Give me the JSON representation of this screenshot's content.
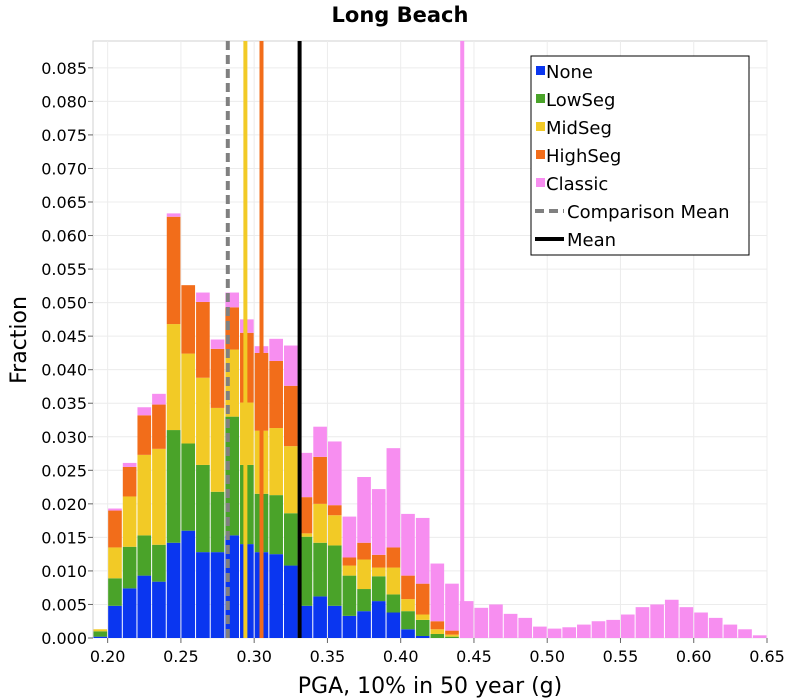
{
  "chart_data": {
    "type": "bar",
    "stacked": true,
    "title": "Long Beach",
    "xlabel": "PGA, 10% in 50 year (g)",
    "ylabel": "Fraction",
    "xlim": [
      0.19,
      0.65
    ],
    "ylim": [
      0,
      0.089
    ],
    "bin_width": 0.01,
    "x_ticks": [
      0.2,
      0.25,
      0.3,
      0.35,
      0.4,
      0.45,
      0.5,
      0.55,
      0.6,
      0.65
    ],
    "x_tick_labels": [
      "0.20",
      "0.25",
      "0.30",
      "0.35",
      "0.40",
      "0.45",
      "0.50",
      "0.55",
      "0.60",
      "0.65"
    ],
    "y_ticks": [
      0,
      0.005,
      0.01,
      0.015,
      0.02,
      0.025,
      0.03,
      0.035,
      0.04,
      0.045,
      0.05,
      0.055,
      0.06,
      0.065,
      0.07,
      0.075,
      0.08,
      0.085
    ],
    "y_tick_labels": [
      "0.000",
      "0.005",
      "0.010",
      "0.015",
      "0.020",
      "0.025",
      "0.030",
      "0.035",
      "0.040",
      "0.045",
      "0.050",
      "0.055",
      "0.060",
      "0.065",
      "0.070",
      "0.075",
      "0.080",
      "0.085"
    ],
    "legend_position": "top-right",
    "bins_left": [
      0.19,
      0.2,
      0.21,
      0.22,
      0.23,
      0.24,
      0.25,
      0.26,
      0.27,
      0.28,
      0.29,
      0.3,
      0.31,
      0.32,
      0.33,
      0.34,
      0.35,
      0.36,
      0.37,
      0.38,
      0.39,
      0.4,
      0.41,
      0.42,
      0.43,
      0.44,
      0.45,
      0.46,
      0.47,
      0.48,
      0.49,
      0.5,
      0.51,
      0.52,
      0.53,
      0.54,
      0.55,
      0.56,
      0.57,
      0.58,
      0.59,
      0.6,
      0.61,
      0.62,
      0.63,
      0.64
    ],
    "series": [
      {
        "name": "None",
        "color": "#0a36f0",
        "values": [
          0.0002,
          0.0048,
          0.0074,
          0.0093,
          0.0084,
          0.0142,
          0.016,
          0.0128,
          0.0128,
          0.0153,
          0.014,
          0.0128,
          0.0125,
          0.0108,
          0.0048,
          0.0062,
          0.0048,
          0.0033,
          0.004,
          0.0055,
          0.0038,
          0.0013,
          0.0003,
          0,
          0,
          0,
          0,
          0,
          0,
          0,
          0,
          0,
          0,
          0,
          0,
          0,
          0,
          0,
          0,
          0,
          0,
          0,
          0,
          0,
          0,
          0
        ]
      },
      {
        "name": "LowSeg",
        "color": "#4aa329",
        "values": [
          0.0008,
          0.0041,
          0.0062,
          0.006,
          0.0055,
          0.0168,
          0.013,
          0.013,
          0.009,
          0.0177,
          0.0118,
          0.0087,
          0.0088,
          0.0078,
          0.0103,
          0.008,
          0.009,
          0.006,
          0.0033,
          0.0037,
          0.0027,
          0.0027,
          0.0024,
          0.0006,
          0.0002,
          0,
          0,
          0,
          0,
          0,
          0,
          0,
          0,
          0,
          0,
          0,
          0,
          0,
          0,
          0,
          0,
          0,
          0,
          0,
          0,
          0
        ]
      },
      {
        "name": "MidSeg",
        "color": "#f2ca26",
        "values": [
          0.0003,
          0.0046,
          0.0075,
          0.012,
          0.0143,
          0.0158,
          0.0134,
          0.013,
          0.0125,
          0.01,
          0.0093,
          0.0094,
          0.01,
          0.01,
          0.0005,
          0.0058,
          0.0045,
          0.0015,
          0.0044,
          0.0013,
          0.004,
          0.0018,
          0.0008,
          0.0007,
          0.0003,
          0,
          0,
          0,
          0,
          0,
          0,
          0,
          0,
          0,
          0,
          0,
          0,
          0,
          0,
          0,
          0,
          0,
          0,
          0,
          0,
          0
        ]
      },
      {
        "name": "HighSeg",
        "color": "#f26d1a",
        "values": [
          0,
          0.0055,
          0.0044,
          0.0059,
          0.0066,
          0.016,
          0.0102,
          0.0113,
          0.0088,
          0.0063,
          0.0104,
          0.0116,
          0.01,
          0.009,
          0.0054,
          0.007,
          0.0015,
          0.0012,
          0.0025,
          0.0019,
          0.003,
          0.0035,
          0.0046,
          0.0012,
          0.0006,
          0,
          0,
          0,
          0,
          0,
          0,
          0,
          0,
          0,
          0,
          0,
          0,
          0,
          0,
          0,
          0,
          0,
          0,
          0,
          0,
          0
        ]
      },
      {
        "name": "Classic",
        "color": "#f78ef0",
        "values": [
          0,
          0.0003,
          0.0006,
          0.0012,
          0.0016,
          0.0005,
          0,
          0.0014,
          0.0014,
          0.0022,
          0.002,
          0.001,
          0.0033,
          0.006,
          0.0066,
          0.0045,
          0.0095,
          0.0061,
          0.0098,
          0.0098,
          0.0148,
          0.0092,
          0.0098,
          0.0086,
          0.007,
          0.0055,
          0.0045,
          0.005,
          0.0036,
          0.003,
          0.0017,
          0.0014,
          0.0016,
          0.002,
          0.0025,
          0.0027,
          0.0035,
          0.0046,
          0.005,
          0.0057,
          0.0046,
          0.0038,
          0.003,
          0.002,
          0.0013,
          0.0004
        ]
      }
    ],
    "vertical_lines": [
      {
        "name": "Comparison Mean",
        "x": 0.282,
        "color": "#808080",
        "style": "dashed",
        "in_legend": true
      },
      {
        "name": "Mean",
        "x": 0.331,
        "color": "#000000",
        "style": "solid",
        "in_legend": true
      },
      {
        "name": "MidSeg mean",
        "x": 0.294,
        "color": "#f2ca26",
        "style": "solid",
        "in_legend": false
      },
      {
        "name": "HighSeg mean",
        "x": 0.305,
        "color": "#f26d1a",
        "style": "solid",
        "in_legend": false
      },
      {
        "name": "Classic mean",
        "x": 0.442,
        "color": "#f78ef0",
        "style": "solid",
        "in_legend": false
      }
    ]
  }
}
